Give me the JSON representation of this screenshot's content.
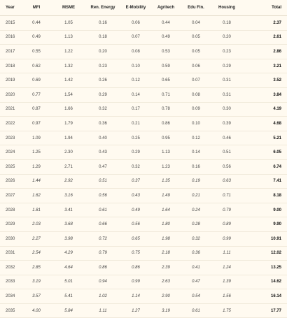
{
  "table": {
    "columns": [
      "Year",
      "MFI",
      "MSME",
      "Ren. Energy",
      "E-Mobility",
      "Agritech",
      "Edu Fin.",
      "Housing",
      "Total"
    ],
    "rows": [
      [
        "2015",
        "0.44",
        "1.05",
        "0.16",
        "0.06",
        "0.44",
        "0.04",
        "0.18",
        "2.37"
      ],
      [
        "2016",
        "0.49",
        "1.13",
        "0.18",
        "0.07",
        "0.49",
        "0.05",
        "0.20",
        "2.61"
      ],
      [
        "2017",
        "0.55",
        "1.22",
        "0.20",
        "0.08",
        "0.53",
        "0.05",
        "0.23",
        "2.86"
      ],
      [
        "2018",
        "0.62",
        "1.32",
        "0.23",
        "0.10",
        "0.59",
        "0.06",
        "0.29",
        "3.21"
      ],
      [
        "2019",
        "0.69",
        "1.42",
        "0.26",
        "0.12",
        "0.65",
        "0.07",
        "0.31",
        "3.52"
      ],
      [
        "2020",
        "0.77",
        "1.54",
        "0.29",
        "0.14",
        "0.71",
        "0.08",
        "0.31",
        "3.84"
      ],
      [
        "2021",
        "0.87",
        "1.66",
        "0.32",
        "0.17",
        "0.78",
        "0.09",
        "0.30",
        "4.19"
      ],
      [
        "2022",
        "0.97",
        "1.79",
        "0.36",
        "0.21",
        "0.86",
        "0.10",
        "0.39",
        "4.68"
      ],
      [
        "2023",
        "1.09",
        "1.94",
        "0.40",
        "0.25",
        "0.95",
        "0.12",
        "0.46",
        "5.21"
      ],
      [
        "2024",
        "1.25",
        "2.30",
        "0.43",
        "0.29",
        "1.13",
        "0.14",
        "0.51",
        "6.05"
      ],
      [
        "2025",
        "1.29",
        "2.71",
        "0.47",
        "0.32",
        "1.23",
        "0.16",
        "0.56",
        "6.74"
      ],
      [
        "2026",
        "1.44",
        "2.92",
        "0.51",
        "0.37",
        "1.35",
        "0.19",
        "0.63",
        "7.41"
      ],
      [
        "2027",
        "1.62",
        "3.16",
        "0.56",
        "0.43",
        "1.49",
        "0.21",
        "0.71",
        "8.18"
      ],
      [
        "2028",
        "1.81",
        "3.41",
        "0.61",
        "0.49",
        "1.64",
        "0.24",
        "0.79",
        "9.00"
      ],
      [
        "2029",
        "2.03",
        "3.68",
        "0.66",
        "0.56",
        "1.80",
        "0.28",
        "0.89",
        "9.90"
      ],
      [
        "2030",
        "2.27",
        "3.98",
        "0.72",
        "0.65",
        "1.98",
        "0.32",
        "0.99",
        "10.91"
      ],
      [
        "2031",
        "2.54",
        "4.29",
        "0.79",
        "0.75",
        "2.18",
        "0.36",
        "1.11",
        "12.02"
      ],
      [
        "2032",
        "2.85",
        "4.64",
        "0.86",
        "0.86",
        "2.39",
        "0.41",
        "1.24",
        "13.25"
      ],
      [
        "2033",
        "3.19",
        "5.01",
        "0.94",
        "0.99",
        "2.63",
        "0.47",
        "1.39",
        "14.62"
      ],
      [
        "2034",
        "3.57",
        "5.41",
        "1.02",
        "1.14",
        "2.90",
        "0.54",
        "1.56",
        "16.14"
      ],
      [
        "2035",
        "4.00",
        "5.84",
        "1.11",
        "1.27",
        "3.19",
        "0.61",
        "1.75",
        "17.77"
      ]
    ]
  }
}
